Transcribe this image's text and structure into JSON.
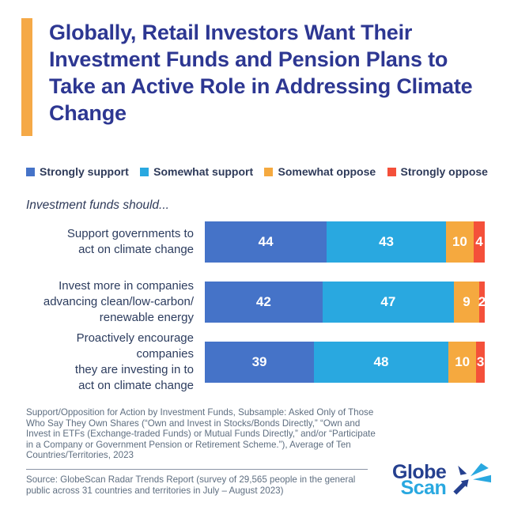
{
  "title": "Globally, Retail Investors Want Their Investment Funds and Pension Plans to Take an Active Role in Addressing Climate Change",
  "chart_intro": "Investment funds should...",
  "legend": [
    {
      "label": "Strongly support",
      "color": "#4573C8"
    },
    {
      "label": "Somewhat support",
      "color": "#29A8E0"
    },
    {
      "label": "Somewhat oppose",
      "color": "#F5A93F"
    },
    {
      "label": "Strongly oppose",
      "color": "#F4503A"
    }
  ],
  "chart_data": {
    "type": "bar",
    "orientation": "horizontal",
    "stacked": true,
    "unit": "percent",
    "axis_range": [
      0,
      100
    ],
    "grid": false,
    "legend_position": "top",
    "categories": [
      "Support governments to act on climate change",
      "Invest more in companies advancing clean/low-carbon/renewable energy",
      "Proactively encourage companies they are investing in to act on climate change"
    ],
    "display_lines": [
      [
        "Support governments to",
        "act on climate change"
      ],
      [
        "Invest more in companies",
        "advancing clean/low-carbon/",
        "renewable energy"
      ],
      [
        "Proactively encourage companies",
        "they are investing in to",
        "act on climate change"
      ]
    ],
    "series": [
      {
        "name": "Strongly support",
        "color": "#4573C8",
        "values": [
          44,
          42,
          39
        ]
      },
      {
        "name": "Somewhat support",
        "color": "#29A8E0",
        "values": [
          43,
          47,
          48
        ]
      },
      {
        "name": "Somewhat oppose",
        "color": "#F5A93F",
        "values": [
          10,
          9,
          10
        ]
      },
      {
        "name": "Strongly oppose",
        "color": "#F4503A",
        "values": [
          4,
          2,
          3
        ]
      }
    ]
  },
  "footnote": "Support/Opposition for Action by Investment Funds, Subsample: Asked Only of Those Who Say They Own Shares (“Own and Invest in Stocks/Bonds Directly,” “Own and Invest in ETFs (Exchange-traded Funds) or Mutual Funds Directly,” and/or “Participate in a Company or Government Pension or Retirement Scheme.”), Average of Ten Countries/Territories, 2023",
  "source": "Source: GlobeScan Radar Trends Report (survey of 29,565 people in the general public across 31 countries and territories in July – August 2023)",
  "logo": {
    "line1": "Globe",
    "line2": "Scan"
  },
  "colors": {
    "title": "#2D3792",
    "accent_bar": "#F5A947",
    "legend_text": "#2E3A59",
    "category_label": "#2C3C5E",
    "footnote_text": "#5E6E80",
    "logo_navy": "#25408F",
    "logo_blue": "#29A8E0"
  }
}
